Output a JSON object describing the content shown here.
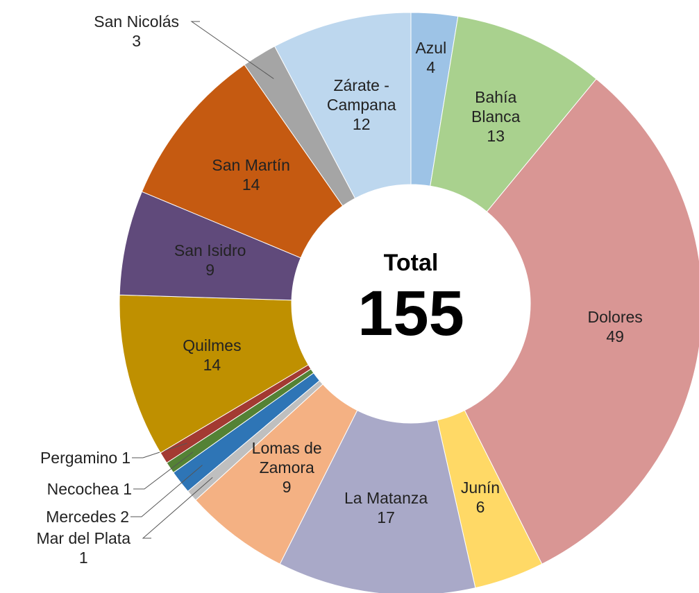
{
  "chart_data": {
    "type": "donut",
    "center_title": "Total",
    "total": 155,
    "categories": [
      "Azul",
      "Bahía Blanca",
      "Dolores",
      "Junín",
      "La Matanza",
      "Lomas de Zamora",
      "Mar del Plata",
      "Mercedes",
      "Necochea",
      "Pergamino",
      "Quilmes",
      "San Isidro",
      "San Martín",
      "San Nicolás",
      "Zárate - Campana"
    ],
    "values": [
      4,
      13,
      49,
      6,
      17,
      9,
      1,
      2,
      1,
      1,
      14,
      9,
      14,
      3,
      12
    ],
    "colors": [
      "#9dc3e6",
      "#a9d18e",
      "#d99694",
      "#ffd966",
      "#a9a9c8",
      "#f4b183",
      "#bfbfbf",
      "#2e75b6",
      "#548235",
      "#a33a32",
      "#bf9000",
      "#604a7b",
      "#c55a11",
      "#a5a5a5",
      "#bdd7ee"
    ]
  }
}
